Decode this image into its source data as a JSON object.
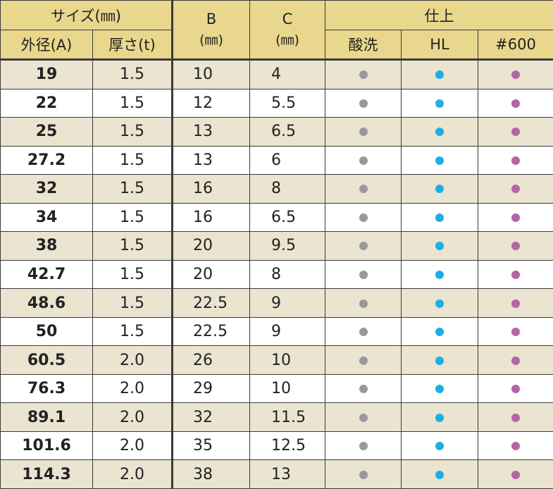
{
  "header": {
    "size_group": "サイズ(㎜)",
    "outer_diameter": "外径(A)",
    "thickness": "厚さ(t)",
    "b_label": "B",
    "b_unit": "(㎜)",
    "c_label": "C",
    "c_unit": "(㎜)",
    "finish_group": "仕上",
    "finish_pickled": "酸洗",
    "finish_hl": "HL",
    "finish_600": "#600"
  },
  "colors": {
    "header_bg": "#e9d78d",
    "stripe_bg": "#eae4d0",
    "dot_pickled": "#999999",
    "dot_hl": "#1eaee6",
    "dot_600": "#b564a8"
  },
  "rows": [
    {
      "od": "19",
      "t": "1.5",
      "b": "10",
      "c": "4"
    },
    {
      "od": "22",
      "t": "1.5",
      "b": "12",
      "c": "5.5"
    },
    {
      "od": "25",
      "t": "1.5",
      "b": "13",
      "c": "6.5"
    },
    {
      "od": "27.2",
      "t": "1.5",
      "b": "13",
      "c": "6"
    },
    {
      "od": "32",
      "t": "1.5",
      "b": "16",
      "c": "8"
    },
    {
      "od": "34",
      "t": "1.5",
      "b": "16",
      "c": "6.5"
    },
    {
      "od": "38",
      "t": "1.5",
      "b": "20",
      "c": "9.5"
    },
    {
      "od": "42.7",
      "t": "1.5",
      "b": "20",
      "c": "8"
    },
    {
      "od": "48.6",
      "t": "1.5",
      "b": "22.5",
      "c": "9"
    },
    {
      "od": "50",
      "t": "1.5",
      "b": "22.5",
      "c": "9"
    },
    {
      "od": "60.5",
      "t": "2.0",
      "b": "26",
      "c": "10"
    },
    {
      "od": "76.3",
      "t": "2.0",
      "b": "29",
      "c": "10"
    },
    {
      "od": "89.1",
      "t": "2.0",
      "b": "32",
      "c": "11.5"
    },
    {
      "od": "101.6",
      "t": "2.0",
      "b": "35",
      "c": "12.5"
    },
    {
      "od": "114.3",
      "t": "2.0",
      "b": "38",
      "c": "13"
    }
  ]
}
